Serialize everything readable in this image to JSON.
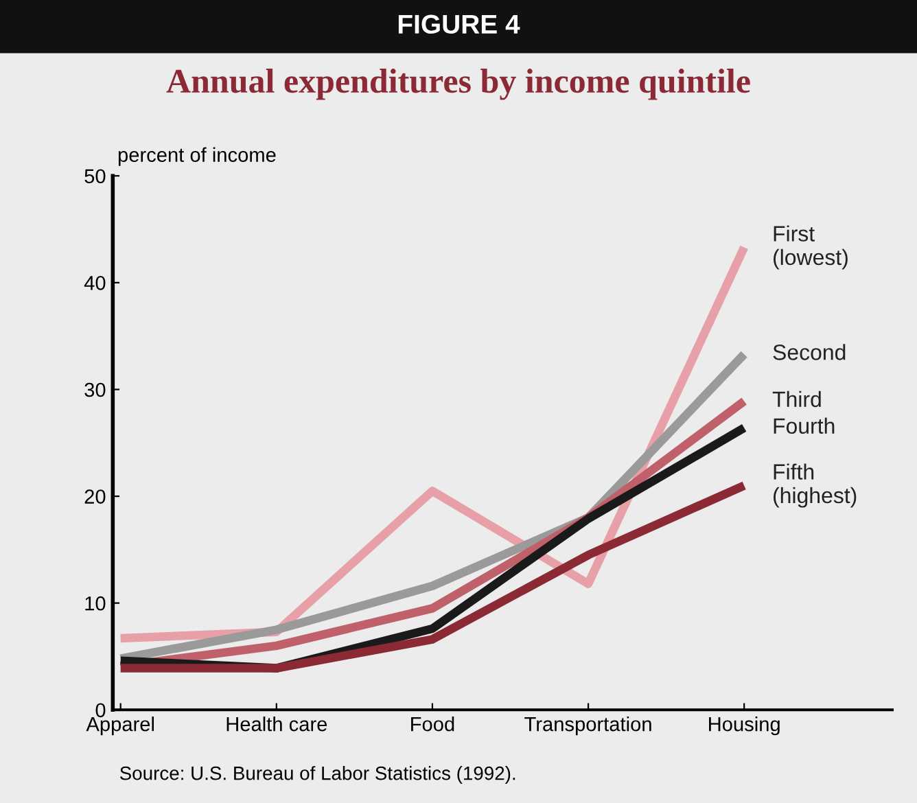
{
  "chart_data": {
    "type": "line",
    "title": "Annual expenditures by income quintile",
    "subtitle": "FIGURE 4",
    "ylabel": "percent of income",
    "categories": [
      "Apparel",
      "Health care",
      "Food",
      "Transportation",
      "Housing"
    ],
    "series": [
      {
        "name": "First\n(lowest)",
        "color": "#e8a0a8",
        "values": [
          6.7,
          7.3,
          20.5,
          11.8,
          43.3
        ]
      },
      {
        "name": "Second",
        "color": "#9a9a9a",
        "values": [
          4.8,
          7.5,
          11.6,
          18,
          33.3
        ]
      },
      {
        "name": "Third",
        "color": "#c0606a",
        "values": [
          4.1,
          6,
          9.5,
          18,
          28.9
        ]
      },
      {
        "name": "Fourth",
        "color": "#1a1a1a",
        "values": [
          4.6,
          3.9,
          7.6,
          17.9,
          26.4
        ]
      },
      {
        "name": "Fifth\n(highest)",
        "color": "#8b2a35",
        "values": [
          3.9,
          3.9,
          6.6,
          14.5,
          21
        ]
      }
    ],
    "ylim": [
      0,
      50
    ],
    "yticks": [
      0,
      10,
      20,
      30,
      40,
      50
    ],
    "grid": false,
    "legend": false,
    "marker": "none",
    "line_style": "solid",
    "annotations": [
      "Source: U.S. Bureau of Labor Statistics (1992)."
    ]
  }
}
